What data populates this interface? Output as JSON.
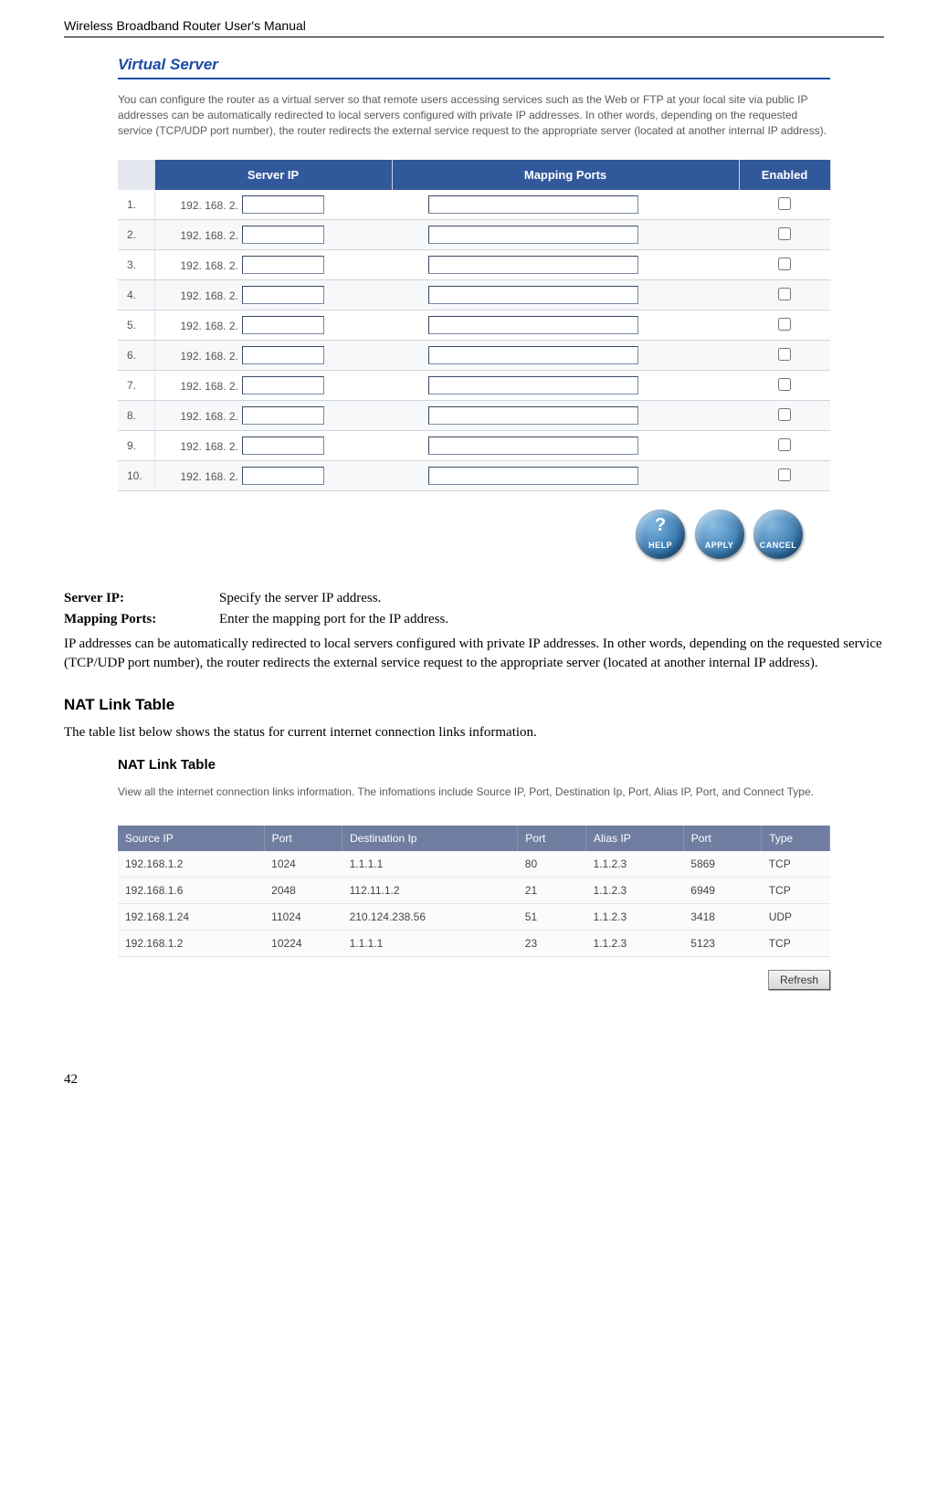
{
  "doc": {
    "header": "Wireless Broadband Router User's Manual",
    "page_number": "42"
  },
  "virtual_server": {
    "title": "Virtual Server",
    "description": "You can configure the router as a virtual server so that remote users accessing services such as the Web or FTP at your local site via public IP addresses can be automatically redirected to local servers configured with private IP addresses. In other words, depending on the requested service (TCP/UDP port number), the router redirects the external service request to the appropriate server (located at another internal IP address).",
    "columns": {
      "server_ip": "Server IP",
      "mapping_ports": "Mapping Ports",
      "enabled": "Enabled"
    },
    "ip_prefix": "192. 168. 2.",
    "rows": [
      {
        "num": "1."
      },
      {
        "num": "2."
      },
      {
        "num": "3."
      },
      {
        "num": "4."
      },
      {
        "num": "5."
      },
      {
        "num": "6."
      },
      {
        "num": "7."
      },
      {
        "num": "8."
      },
      {
        "num": "9."
      },
      {
        "num": "10."
      }
    ],
    "buttons": {
      "help": "HELP",
      "apply": "APPLY",
      "cancel": "CANCEL"
    }
  },
  "definitions": {
    "server_ip_label": "Server IP:",
    "server_ip_text": "Specify the server IP address.",
    "mapping_label": "Mapping Ports:",
    "mapping_text": "Enter the mapping port for the IP address.",
    "para": "IP addresses can be automatically redirected to local servers configured with private IP addresses. In other words, depending on the requested service (TCP/UDP port number), the router redirects the external service request to the appropriate server (located at another internal IP address)."
  },
  "nat_section": {
    "heading": "NAT Link Table",
    "intro": "The table list below shows the status for current internet connection links information.",
    "title": "NAT Link Table",
    "description": "View all the internet connection links information. The infomations include Source IP, Port, Destination Ip, Port, Alias IP, Port, and Connect Type.",
    "columns": [
      "Source IP",
      "Port",
      "Destination Ip",
      "Port",
      "Alias IP",
      "Port",
      "Type"
    ],
    "rows": [
      [
        "192.168.1.2",
        "1024",
        "1.1.1.1",
        "80",
        "1.1.2.3",
        "5869",
        "TCP"
      ],
      [
        "192.168.1.6",
        "2048",
        "112.11.1.2",
        "21",
        "1.1.2.3",
        "6949",
        "TCP"
      ],
      [
        "192.168.1.24",
        "11024",
        "210.124.238.56",
        "51",
        "1.1.2.3",
        "3418",
        "UDP"
      ],
      [
        "192.168.1.2",
        "10224",
        "1.1.1.1",
        "23",
        "1.1.2.3",
        "5123",
        "TCP"
      ]
    ],
    "refresh": "Refresh"
  }
}
